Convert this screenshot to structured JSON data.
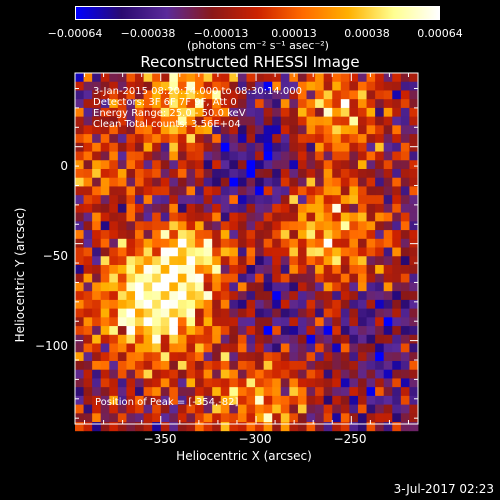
{
  "chart_data": {
    "type": "heatmap",
    "title": "Reconstructed RHESSI Image",
    "xlabel": "Heliocentric X (arcsec)",
    "ylabel": "Heliocentric Y (arcsec)",
    "xlim": [
      -395,
      -215
    ],
    "ylim": [
      -143,
      38
    ],
    "xticks": [
      {
        "value": -350,
        "label": "−350"
      },
      {
        "value": -300,
        "label": "−300"
      },
      {
        "value": -250,
        "label": "−250"
      }
    ],
    "yticks": [
      {
        "value": 0,
        "label": "0"
      },
      {
        "value": -50,
        "label": "−50"
      },
      {
        "value": -100,
        "label": "−100"
      }
    ],
    "colorbar": {
      "ticks": [
        {
          "value": -0.00064,
          "label": "−0.00064"
        },
        {
          "value": -0.00038,
          "label": "−0.00038"
        },
        {
          "value": -0.00013,
          "label": "−0.00013"
        },
        {
          "value": 0.00013,
          "label": "0.00013"
        },
        {
          "value": 0.00038,
          "label": "0.00038"
        },
        {
          "value": 0.00064,
          "label": "0.00064"
        }
      ],
      "range": [
        -0.00064,
        0.00064
      ],
      "unit": "(photons cm⁻² s⁻¹ asec⁻²)"
    },
    "annotations": {
      "time_range": "3-Jan-2015 08:20:14.000 to 08:30:14.000",
      "detectors": "Detectors: 3F 6F 7F 9F, Att 0",
      "energy_range": "Energy Range: 25.0 - 50.0 keV",
      "clean_counts": "Clean    Total counts: 3.56E+04",
      "peak": "Position of Peak = [-354,-82]"
    },
    "colormap_stops": [
      "#0000ff",
      "#2a0a70",
      "#5a2a9a",
      "#8a1818",
      "#cc2200",
      "#ff6a00",
      "#ffb000",
      "#ffff90",
      "#ffffff"
    ]
  },
  "footer": {
    "timestamp": "3-Jul-2017 02:23"
  }
}
